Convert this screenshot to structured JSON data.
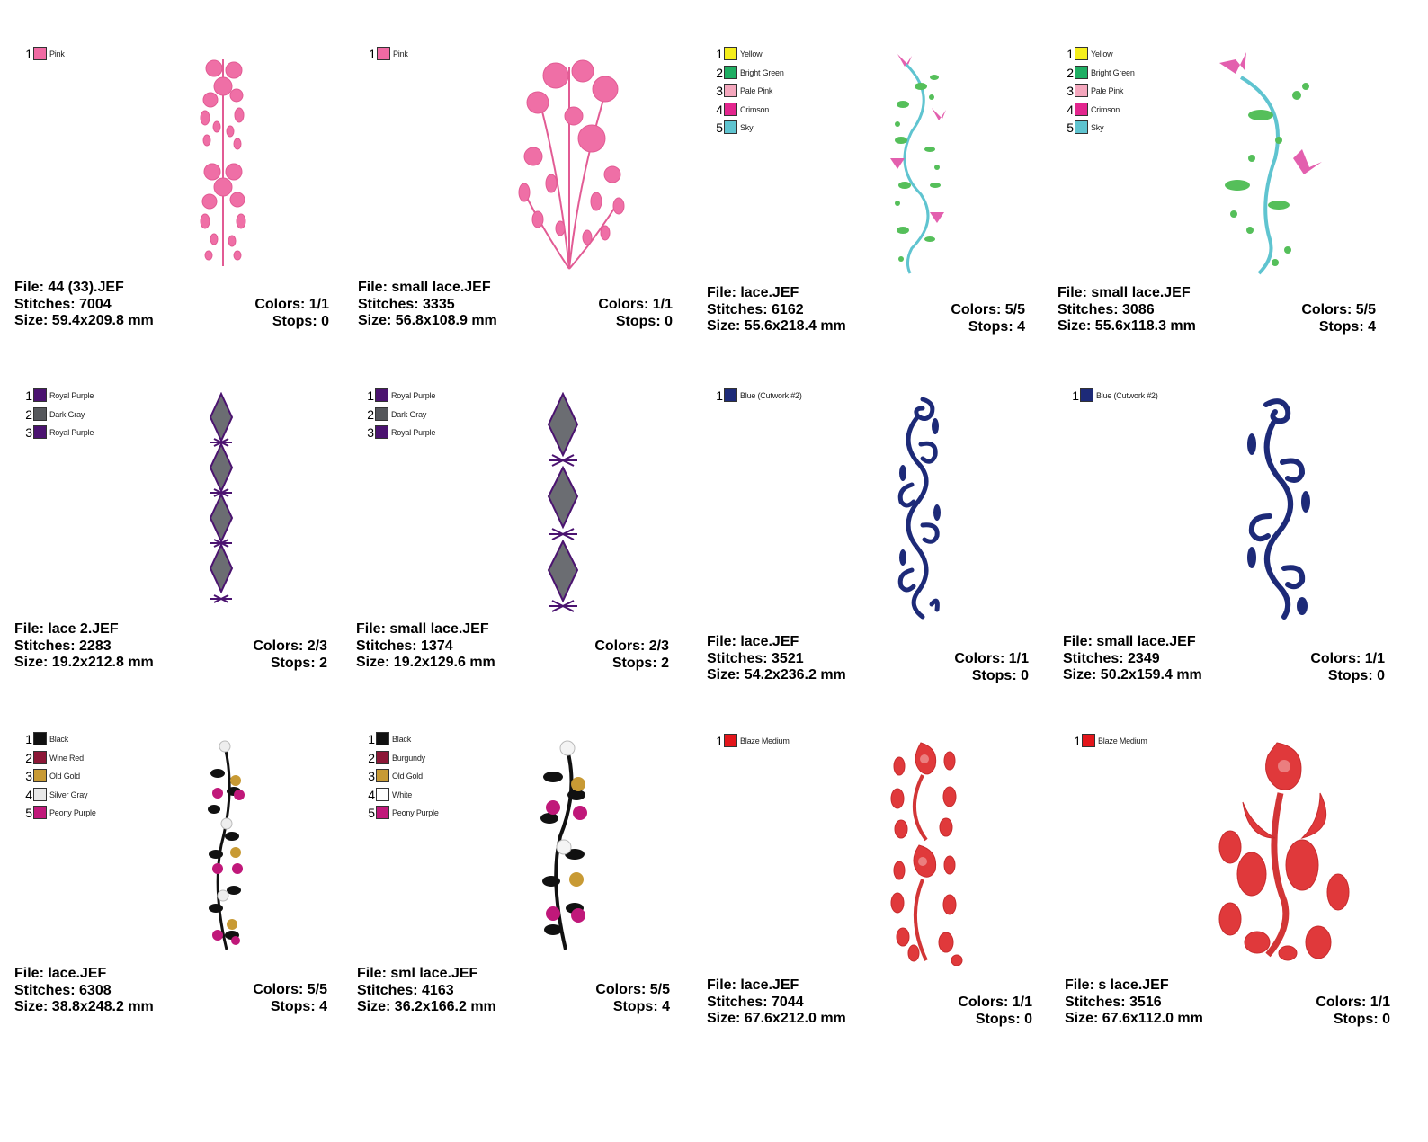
{
  "designs": [
    {
      "legend": [
        {
          "num": "1",
          "name": "Pink",
          "color": "#f06aa3"
        }
      ],
      "file": "File: 44 (33).JEF",
      "stitches": "Stitches: 7004",
      "size": "Size: 59.4x209.8 mm",
      "colors": "Colors: 1/1",
      "stops": "Stops: 0",
      "art_icon": "pink-floral-border-art"
    },
    {
      "legend": [
        {
          "num": "1",
          "name": "Pink",
          "color": "#f06aa3"
        }
      ],
      "file": "File: small lace.JEF",
      "stitches": "Stitches: 3335",
      "size": "Size: 56.8x108.9 mm",
      "colors": "Colors: 1/1",
      "stops": "Stops: 0",
      "art_icon": "pink-floral-spray-art"
    },
    {
      "legend": [
        {
          "num": "1",
          "name": "Yellow",
          "color": "#f5ee1c"
        },
        {
          "num": "2",
          "name": "Bright Green",
          "color": "#1fae63"
        },
        {
          "num": "3",
          "name": "Pale Pink",
          "color": "#f4a7bd"
        },
        {
          "num": "4",
          "name": "Crimson",
          "color": "#e3268e"
        },
        {
          "num": "5",
          "name": "Sky",
          "color": "#5fc4d0"
        }
      ],
      "file": "File: lace.JEF",
      "stitches": "Stitches: 6162",
      "size": "Size: 55.6x218.4 mm",
      "colors": "Colors: 5/5",
      "stops": "Stops: 4",
      "art_icon": "vine-with-pink-buds-art"
    },
    {
      "legend": [
        {
          "num": "1",
          "name": "Yellow",
          "color": "#f5ee1c"
        },
        {
          "num": "2",
          "name": "Bright Green",
          "color": "#1fae63"
        },
        {
          "num": "3",
          "name": "Pale Pink",
          "color": "#f4a7bd"
        },
        {
          "num": "4",
          "name": "Crimson",
          "color": "#e3268e"
        },
        {
          "num": "5",
          "name": "Sky",
          "color": "#5fc4d0"
        }
      ],
      "file": "File: small lace.JEF",
      "stitches": "Stitches: 3086",
      "size": "Size: 55.6x118.3 mm",
      "colors": "Colors: 5/5",
      "stops": "Stops: 4",
      "art_icon": "vine-with-pink-buds-art"
    },
    {
      "legend": [
        {
          "num": "1",
          "name": "Royal Purple",
          "color": "#4b1370"
        },
        {
          "num": "2",
          "name": "Dark Gray",
          "color": "#55575b"
        },
        {
          "num": "3",
          "name": "Royal Purple",
          "color": "#4b1370"
        }
      ],
      "file": "File: lace 2.JEF",
      "stitches": "Stitches: 2283",
      "size": "Size: 19.2x212.8 mm",
      "colors": "Colors: 2/3",
      "stops": "Stops: 2",
      "art_icon": "purple-lace-diamond-chain-art"
    },
    {
      "legend": [
        {
          "num": "1",
          "name": "Royal Purple",
          "color": "#4b1370"
        },
        {
          "num": "2",
          "name": "Dark Gray",
          "color": "#55575b"
        },
        {
          "num": "3",
          "name": "Royal Purple",
          "color": "#4b1370"
        }
      ],
      "file": "File: small lace.JEF",
      "stitches": "Stitches: 1374",
      "size": "Size: 19.2x129.6 mm",
      "colors": "Colors: 2/3",
      "stops": "Stops: 2",
      "art_icon": "purple-lace-diamond-chain-art"
    },
    {
      "legend": [
        {
          "num": "1",
          "name": "Blue (Cutwork #2)",
          "color": "#1d2a78"
        }
      ],
      "file": "File: lace.JEF",
      "stitches": "Stitches: 3521",
      "size": "Size: 54.2x236.2 mm",
      "colors": "Colors: 1/1",
      "stops": "Stops: 0",
      "art_icon": "blue-scroll-border-art"
    },
    {
      "legend": [
        {
          "num": "1",
          "name": "Blue (Cutwork #2)",
          "color": "#1d2a78"
        }
      ],
      "file": "File: small lace.JEF",
      "stitches": "Stitches: 2349",
      "size": "Size: 50.2x159.4 mm",
      "colors": "Colors: 1/1",
      "stops": "Stops: 0",
      "art_icon": "blue-scroll-border-art"
    },
    {
      "legend": [
        {
          "num": "1",
          "name": "Black",
          "color": "#111111"
        },
        {
          "num": "2",
          "name": "Wine Red",
          "color": "#8c1737"
        },
        {
          "num": "3",
          "name": "Old Gold",
          "color": "#c89a34"
        },
        {
          "num": "4",
          "name": "Silver Gray",
          "color": "#e9e9e9"
        },
        {
          "num": "5",
          "name": "Peony Purple",
          "color": "#c0187a"
        }
      ],
      "file": "File: lace.JEF",
      "stitches": "Stitches: 6308",
      "size": "Size: 38.8x248.2 mm",
      "colors": "Colors: 5/5",
      "stops": "Stops: 4",
      "art_icon": "black-vine-with-flowers-art"
    },
    {
      "legend": [
        {
          "num": "1",
          "name": "Black",
          "color": "#111111"
        },
        {
          "num": "2",
          "name": "Burgundy",
          "color": "#8c1737"
        },
        {
          "num": "3",
          "name": "Old Gold",
          "color": "#c89a34"
        },
        {
          "num": "4",
          "name": "White",
          "color": "#ffffff"
        },
        {
          "num": "5",
          "name": "Peony Purple",
          "color": "#c0187a"
        }
      ],
      "file": "File: sml lace.JEF",
      "stitches": "Stitches: 4163",
      "size": "Size: 36.2x166.2 mm",
      "colors": "Colors: 5/5",
      "stops": "Stops: 4",
      "art_icon": "black-vine-with-flowers-art"
    },
    {
      "legend": [
        {
          "num": "1",
          "name": "Blaze Medium",
          "color": "#e3161b"
        }
      ],
      "file": "File: lace.JEF",
      "stitches": "Stitches: 7044",
      "size": "Size: 67.6x212.0 mm",
      "colors": "Colors: 1/1",
      "stops": "Stops: 0",
      "art_icon": "red-paisley-floral-art"
    },
    {
      "legend": [
        {
          "num": "1",
          "name": "Blaze Medium",
          "color": "#e3161b"
        }
      ],
      "file": "File: s lace.JEF",
      "stitches": "Stitches: 3516",
      "size": "Size: 67.6x112.0 mm",
      "colors": "Colors: 1/1",
      "stops": "Stops: 0",
      "art_icon": "red-paisley-floral-art"
    }
  ]
}
